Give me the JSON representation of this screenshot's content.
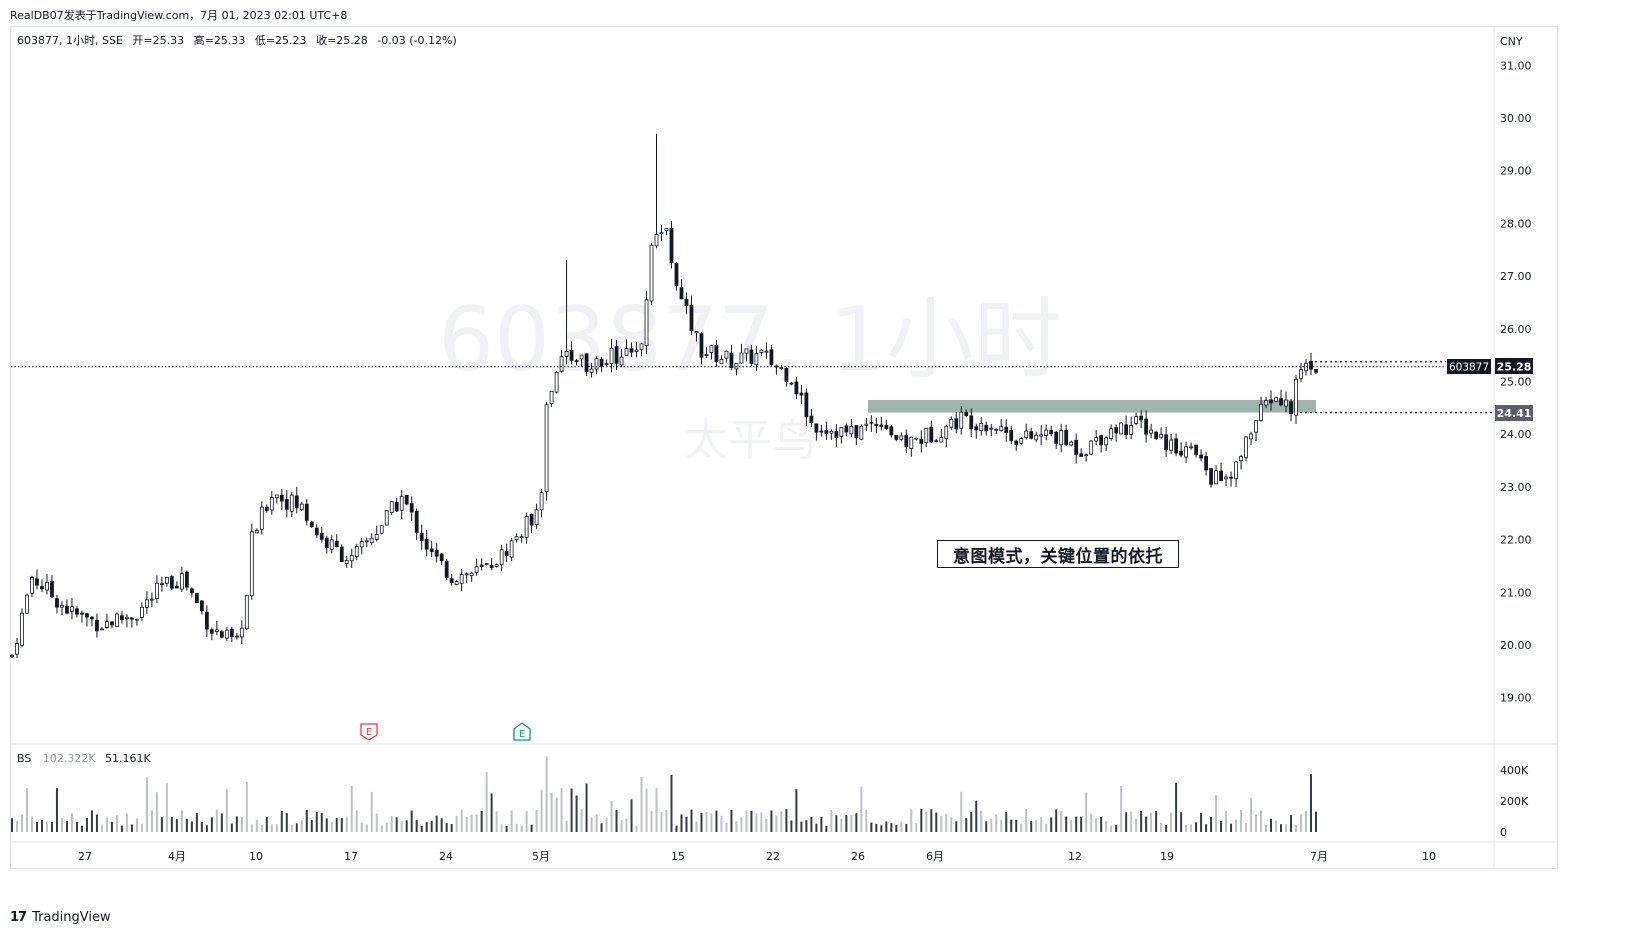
{
  "header": {
    "published": "RealDB07发表于TradingView.com，7月 01, 2023 02:01 UTC+8"
  },
  "legend": {
    "symbol": "603877, 1小时, SSE",
    "open_label": "开",
    "open": "=25.33",
    "high_label": "高",
    "high": "=25.33",
    "low_label": "低",
    "low": "=25.23",
    "close_label": "收",
    "close": "=25.28",
    "change": "-0.03 (-0.12%)"
  },
  "watermark": {
    "line1": "603877, 1小时",
    "line2": "太平鸟"
  },
  "annotation": {
    "text": "意图模式，关键位置的依托"
  },
  "price_axis": {
    "currency": "CNY",
    "ticks": [
      "31.00",
      "30.00",
      "29.00",
      "28.00",
      "27.00",
      "26.00",
      "25.00",
      "24.00",
      "23.00",
      "22.00",
      "21.00",
      "20.00",
      "19.00"
    ],
    "current_symbol": "603877",
    "current_price": "25.28",
    "level_price": "24.41"
  },
  "volume": {
    "label": "BS",
    "value1": "102.322K",
    "value2": "51.161K",
    "ticks": [
      "400K",
      "200K",
      "0"
    ]
  },
  "time_axis": {
    "labels": [
      "27",
      "4月",
      "10",
      "17",
      "24",
      "5月",
      "15",
      "22",
      "26",
      "6月",
      "12",
      "19",
      "7月",
      "10"
    ]
  },
  "earnings_markers": [
    "E",
    "E"
  ],
  "footer": {
    "brand": "TradingView"
  },
  "colors": {
    "candle": "#131722",
    "zone": "#8fa79f",
    "level_tag": "#5d606b",
    "earnings_red": "#f23645",
    "earnings_green": "#089981",
    "volume_bar": "#787b86"
  },
  "chart_data": {
    "type": "candlestick",
    "symbol": "603877",
    "interval": "1小时",
    "exchange": "SSE",
    "ylim": [
      18.3,
      31.5
    ],
    "volume_ylim": [
      0,
      500000
    ],
    "path_keypoints": [
      {
        "i": 0,
        "p": 19.8
      },
      {
        "i": 4,
        "p": 21.3
      },
      {
        "i": 12,
        "p": 20.6
      },
      {
        "i": 18,
        "p": 20.4
      },
      {
        "i": 25,
        "p": 20.6
      },
      {
        "i": 30,
        "p": 21.1
      },
      {
        "i": 34,
        "p": 21.3
      },
      {
        "i": 40,
        "p": 20.3
      },
      {
        "i": 45,
        "p": 20.0
      },
      {
        "i": 47,
        "p": 20.9
      },
      {
        "i": 48,
        "p": 22.0
      },
      {
        "i": 52,
        "p": 22.9
      },
      {
        "i": 58,
        "p": 22.6
      },
      {
        "i": 62,
        "p": 22.0
      },
      {
        "i": 68,
        "p": 21.6
      },
      {
        "i": 74,
        "p": 22.3
      },
      {
        "i": 78,
        "p": 22.8
      },
      {
        "i": 84,
        "p": 21.7
      },
      {
        "i": 88,
        "p": 21.3
      },
      {
        "i": 94,
        "p": 21.4
      },
      {
        "i": 98,
        "p": 21.7
      },
      {
        "i": 104,
        "p": 22.4
      },
      {
        "i": 106,
        "p": 23.0
      },
      {
        "i": 107,
        "p": 24.7
      },
      {
        "i": 111,
        "p": 25.6
      },
      {
        "i": 116,
        "p": 25.3
      },
      {
        "i": 121,
        "p": 25.5
      },
      {
        "i": 126,
        "p": 25.8
      },
      {
        "i": 128,
        "p": 27.6
      },
      {
        "i": 131,
        "p": 27.9
      },
      {
        "i": 134,
        "p": 26.5
      },
      {
        "i": 138,
        "p": 25.6
      },
      {
        "i": 144,
        "p": 25.4
      },
      {
        "i": 150,
        "p": 25.5
      },
      {
        "i": 156,
        "p": 25.1
      },
      {
        "i": 160,
        "p": 24.2
      },
      {
        "i": 168,
        "p": 24.0
      },
      {
        "i": 174,
        "p": 24.3
      },
      {
        "i": 178,
        "p": 23.8
      },
      {
        "i": 184,
        "p": 24.0
      },
      {
        "i": 190,
        "p": 24.3
      },
      {
        "i": 196,
        "p": 24.2
      },
      {
        "i": 202,
        "p": 23.9
      },
      {
        "i": 208,
        "p": 24.0
      },
      {
        "i": 214,
        "p": 23.7
      },
      {
        "i": 220,
        "p": 24.1
      },
      {
        "i": 226,
        "p": 24.2
      },
      {
        "i": 232,
        "p": 23.8
      },
      {
        "i": 236,
        "p": 23.7
      },
      {
        "i": 240,
        "p": 23.2
      },
      {
        "i": 244,
        "p": 23.1
      },
      {
        "i": 248,
        "p": 24.1
      },
      {
        "i": 252,
        "p": 24.7
      },
      {
        "i": 256,
        "p": 24.5
      },
      {
        "i": 258,
        "p": 25.3
      },
      {
        "i": 261,
        "p": 25.28
      }
    ],
    "total_bars": 262,
    "support_zone": {
      "from": 24.41,
      "to": 24.65
    },
    "last_close": 25.28,
    "level": 24.41
  }
}
